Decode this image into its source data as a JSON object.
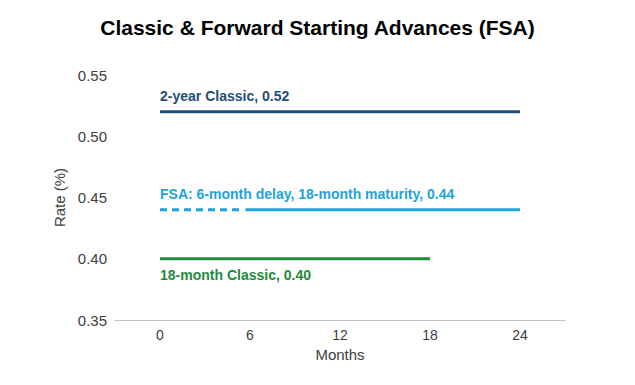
{
  "chart_data": {
    "type": "line",
    "title": "Classic & Forward Starting Advances (FSA)",
    "x_label": "Months",
    "y_label": "Rate (%)",
    "xlim": [
      -3,
      27
    ],
    "xticks": [
      0,
      6,
      12,
      18,
      24
    ],
    "ylim": [
      0.35,
      0.55
    ],
    "yticks": [
      0.35,
      {
        "value": 0.4,
        "label": "0.40"
      },
      0.45,
      {
        "value": 0.5,
        "label": "0.50"
      },
      0.55
    ],
    "grid": false,
    "series": [
      {
        "name": "2-year Classic, 0.52",
        "color": "#1f4e79",
        "line_style": "solid",
        "x": [
          0,
          24
        ],
        "values": [
          0.52,
          0.52
        ]
      },
      {
        "name": "FSA: 6-month delay, 18-month maturity, 0.44",
        "color": "#1fa3dc",
        "line_style": "dashed",
        "x": [
          0,
          5.3
        ],
        "values": [
          0.44,
          0.44
        ]
      },
      {
        "color": "#1fa3dc",
        "line_style": "solid",
        "x": [
          5.7,
          24
        ],
        "values": [
          0.44,
          0.44
        ]
      },
      {
        "name": "18-month Classic, 0.40",
        "color": "#1e8b3a",
        "line_style": "solid",
        "x": [
          0,
          18
        ],
        "values": [
          0.4,
          0.4
        ]
      }
    ]
  }
}
